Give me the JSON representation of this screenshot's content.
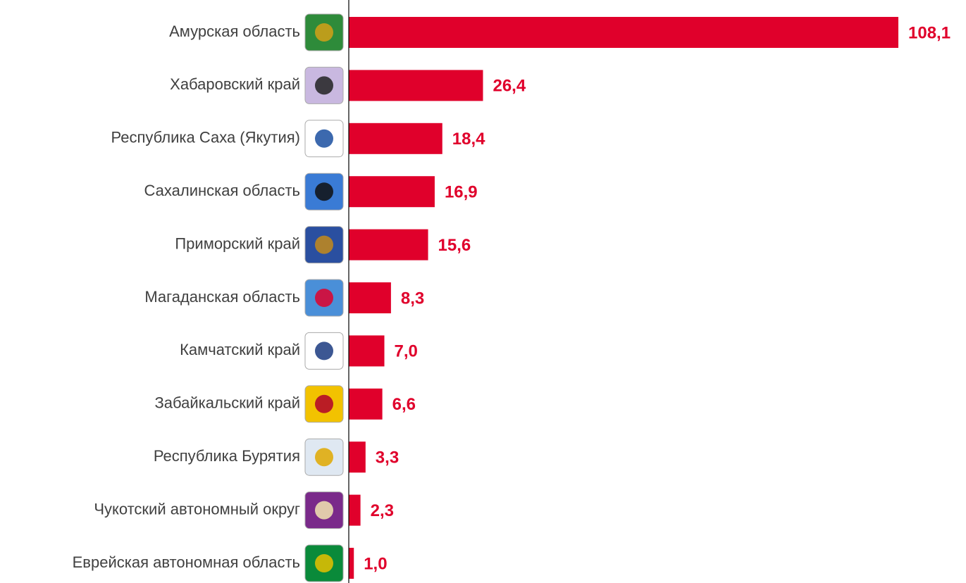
{
  "chart_data": {
    "type": "bar",
    "orientation": "horizontal",
    "categories": [
      "Амурская область",
      "Хабаровский край",
      "Республика Саха (Якутия)",
      "Сахалинская область",
      "Приморский край",
      "Магаданская область",
      "Камчатский край",
      "Забайкальский край",
      "Республика Бурятия",
      "Чукотский автономный округ",
      "Еврейская автономная область"
    ],
    "values": [
      108.1,
      26.4,
      18.4,
      16.9,
      15.6,
      8.3,
      7.0,
      6.6,
      3.3,
      2.3,
      1.0
    ],
    "value_labels": [
      "108,1",
      "26,4",
      "18,4",
      "16,9",
      "15,6",
      "8,3",
      "7,0",
      "6,6",
      "3,3",
      "2,3",
      "1,0"
    ],
    "color": "#e0002b"
  }
}
